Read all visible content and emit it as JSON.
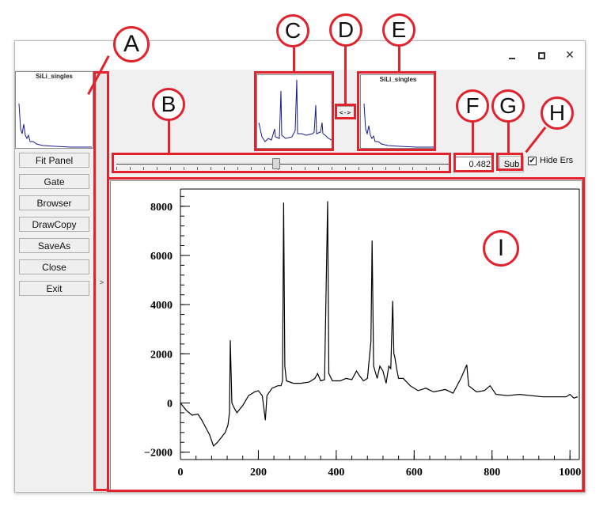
{
  "colors": {
    "accent_annotation": "#e0232d",
    "spectrum_line": "#1a1a8c",
    "main_plot_line": "#000000"
  },
  "window": {
    "controls": {
      "minimize": "minimize-icon",
      "maximize": "maximize-icon",
      "close": "close-icon"
    }
  },
  "thumbnails": {
    "left_title": "SiLi_singles",
    "right_title": "SiLi_singles"
  },
  "buttons": {
    "fit_panel": "Fit Panel",
    "gate": "Gate",
    "browser": "Browser",
    "drawcopy": "DrawCopy",
    "saveas": "SaveAs",
    "close": "Close",
    "exit": "Exit"
  },
  "collapse_arrow": ">",
  "swap_label": "<->",
  "slider": {
    "value_fraction": 0.48
  },
  "value_box": "0.482",
  "sub_label": "Sub",
  "hide_errors": {
    "label": "Hide Ers",
    "checked": true,
    "mark": "✔"
  },
  "annotations": [
    "A",
    "B",
    "C",
    "D",
    "E",
    "F",
    "G",
    "H",
    "I"
  ],
  "chart_data": {
    "type": "line",
    "title": "",
    "xlabel": "",
    "ylabel": "",
    "xlim": [
      0,
      1024
    ],
    "ylim": [
      -2300,
      8700
    ],
    "xticks": [
      "0",
      "200",
      "400",
      "600",
      "800",
      "1000"
    ],
    "yticks": [
      "−2000",
      "0",
      "2000",
      "4000",
      "6000",
      "8000"
    ],
    "xtick_values": [
      0,
      200,
      400,
      600,
      800,
      1000
    ],
    "ytick_values": [
      -2000,
      0,
      2000,
      4000,
      6000,
      8000
    ],
    "series": [
      {
        "points": [
          [
            0,
            0
          ],
          [
            15,
            -300
          ],
          [
            30,
            -500
          ],
          [
            45,
            -450
          ],
          [
            55,
            -700
          ],
          [
            65,
            -1000
          ],
          [
            75,
            -1300
          ],
          [
            85,
            -1750
          ],
          [
            95,
            -1600
          ],
          [
            105,
            -1400
          ],
          [
            115,
            -1200
          ],
          [
            122,
            -900
          ],
          [
            126,
            -400
          ],
          [
            128,
            2550
          ],
          [
            132,
            0
          ],
          [
            138,
            -200
          ],
          [
            145,
            -400
          ],
          [
            150,
            -300
          ],
          [
            160,
            -100
          ],
          [
            175,
            300
          ],
          [
            190,
            450
          ],
          [
            200,
            500
          ],
          [
            210,
            300
          ],
          [
            218,
            -700
          ],
          [
            222,
            300
          ],
          [
            235,
            600
          ],
          [
            250,
            700
          ],
          [
            258,
            700
          ],
          [
            262,
            900
          ],
          [
            265,
            8150
          ],
          [
            268,
            1500
          ],
          [
            272,
            900
          ],
          [
            290,
            800
          ],
          [
            310,
            800
          ],
          [
            330,
            850
          ],
          [
            345,
            1000
          ],
          [
            352,
            1200
          ],
          [
            360,
            900
          ],
          [
            370,
            950
          ],
          [
            378,
            8200
          ],
          [
            381,
            1200
          ],
          [
            390,
            900
          ],
          [
            410,
            900
          ],
          [
            425,
            1000
          ],
          [
            440,
            950
          ],
          [
            452,
            1300
          ],
          [
            460,
            1100
          ],
          [
            470,
            900
          ],
          [
            480,
            1000
          ],
          [
            489,
            2500
          ],
          [
            492,
            6600
          ],
          [
            496,
            1500
          ],
          [
            505,
            1000
          ],
          [
            512,
            1500
          ],
          [
            520,
            1300
          ],
          [
            528,
            800
          ],
          [
            535,
            1500
          ],
          [
            540,
            1400
          ],
          [
            545,
            4150
          ],
          [
            548,
            2000
          ],
          [
            550,
            1900
          ],
          [
            555,
            1400
          ],
          [
            560,
            1000
          ],
          [
            572,
            1000
          ],
          [
            590,
            700
          ],
          [
            610,
            500
          ],
          [
            630,
            600
          ],
          [
            650,
            450
          ],
          [
            680,
            550
          ],
          [
            700,
            400
          ],
          [
            720,
            1000
          ],
          [
            735,
            1550
          ],
          [
            740,
            700
          ],
          [
            760,
            450
          ],
          [
            780,
            500
          ],
          [
            795,
            700
          ],
          [
            810,
            350
          ],
          [
            840,
            300
          ],
          [
            870,
            350
          ],
          [
            900,
            300
          ],
          [
            930,
            250
          ],
          [
            960,
            250
          ],
          [
            990,
            250
          ],
          [
            1000,
            350
          ],
          [
            1010,
            200
          ],
          [
            1020,
            250
          ]
        ]
      }
    ]
  }
}
